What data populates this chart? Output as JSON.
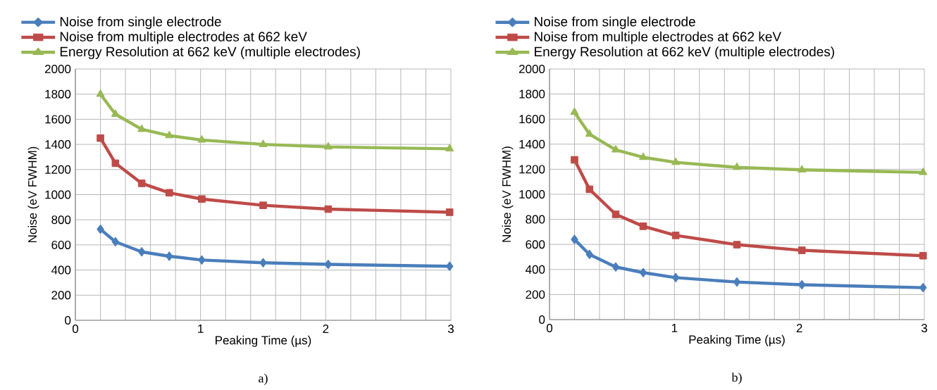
{
  "chart_data": [
    {
      "type": "line",
      "xlabel": "Peaking Time (µs)",
      "ylabel": "Noise (eV FWHM)",
      "annotations": [
        "a)"
      ],
      "xlim": [
        0,
        3
      ],
      "ylim": [
        0,
        2000
      ],
      "xticks": [
        0,
        {
          "value": 0.2,
          "label": null
        },
        {
          "value": 0.4,
          "label": null
        },
        {
          "value": 0.6,
          "label": null
        },
        {
          "value": 0.8,
          "label": null
        },
        1,
        {
          "value": 1.2,
          "label": null
        },
        {
          "value": 1.4,
          "label": null
        },
        {
          "value": 1.6,
          "label": null
        },
        {
          "value": 1.8,
          "label": null
        },
        2,
        {
          "value": 2.2,
          "label": null
        },
        {
          "value": 2.4,
          "label": null
        },
        {
          "value": 2.6,
          "label": null
        },
        {
          "value": 2.8,
          "label": null
        },
        3
      ],
      "yticks": [
        0,
        200,
        400,
        600,
        800,
        1000,
        1200,
        1400,
        1600,
        1800,
        2000
      ],
      "grid": true,
      "legend": "top left",
      "line_style": "solid",
      "x": [
        0.2,
        0.32,
        0.53,
        0.75,
        1.01,
        1.5,
        2.02,
        2.99
      ],
      "series": [
        {
          "name": "Noise from single electrode",
          "color": "#4a7ebb",
          "marker": "diamond",
          "values": [
            725,
            625,
            545,
            510,
            480,
            458,
            445,
            430
          ]
        },
        {
          "name": "Noise from multiple electrodes at 662 keV",
          "color": "#be4b48",
          "marker": "square",
          "values": [
            1450,
            1250,
            1090,
            1015,
            965,
            915,
            885,
            860
          ]
        },
        {
          "name": "Energy Resolution at 662 keV (multiple electrodes)",
          "color": "#98b954",
          "marker": "triangle",
          "values": [
            1800,
            1640,
            1520,
            1470,
            1435,
            1400,
            1380,
            1365
          ]
        }
      ]
    },
    {
      "type": "line",
      "xlabel": "Peaking Time (µs)",
      "ylabel": "Noise (eV FWHM)",
      "annotations": [
        "b)"
      ],
      "xlim": [
        0,
        3
      ],
      "ylim": [
        0,
        2000
      ],
      "xticks": [
        0,
        {
          "value": 0.2,
          "label": null
        },
        {
          "value": 0.4,
          "label": null
        },
        {
          "value": 0.6,
          "label": null
        },
        {
          "value": 0.8,
          "label": null
        },
        1,
        {
          "value": 1.2,
          "label": null
        },
        {
          "value": 1.4,
          "label": null
        },
        {
          "value": 1.6,
          "label": null
        },
        {
          "value": 1.8,
          "label": null
        },
        2,
        {
          "value": 2.2,
          "label": null
        },
        {
          "value": 2.4,
          "label": null
        },
        {
          "value": 2.6,
          "label": null
        },
        {
          "value": 2.8,
          "label": null
        },
        3
      ],
      "yticks": [
        0,
        200,
        400,
        600,
        800,
        1000,
        1200,
        1400,
        1600,
        1800,
        2000
      ],
      "grid": true,
      "legend": "top left",
      "line_style": "solid",
      "x": [
        0.2,
        0.32,
        0.53,
        0.75,
        1.01,
        1.5,
        2.02,
        2.99
      ],
      "series": [
        {
          "name": "Noise from single electrode",
          "color": "#4a7ebb",
          "marker": "diamond",
          "values": [
            640,
            520,
            420,
            375,
            335,
            300,
            278,
            255
          ]
        },
        {
          "name": "Noise from multiple electrodes at 662 keV",
          "color": "#be4b48",
          "marker": "square",
          "values": [
            1275,
            1040,
            840,
            745,
            672,
            598,
            553,
            510
          ]
        },
        {
          "name": "Energy Resolution at 662 keV (multiple electrodes)",
          "color": "#98b954",
          "marker": "triangle",
          "values": [
            1655,
            1480,
            1355,
            1295,
            1255,
            1215,
            1195,
            1175
          ]
        }
      ]
    }
  ]
}
